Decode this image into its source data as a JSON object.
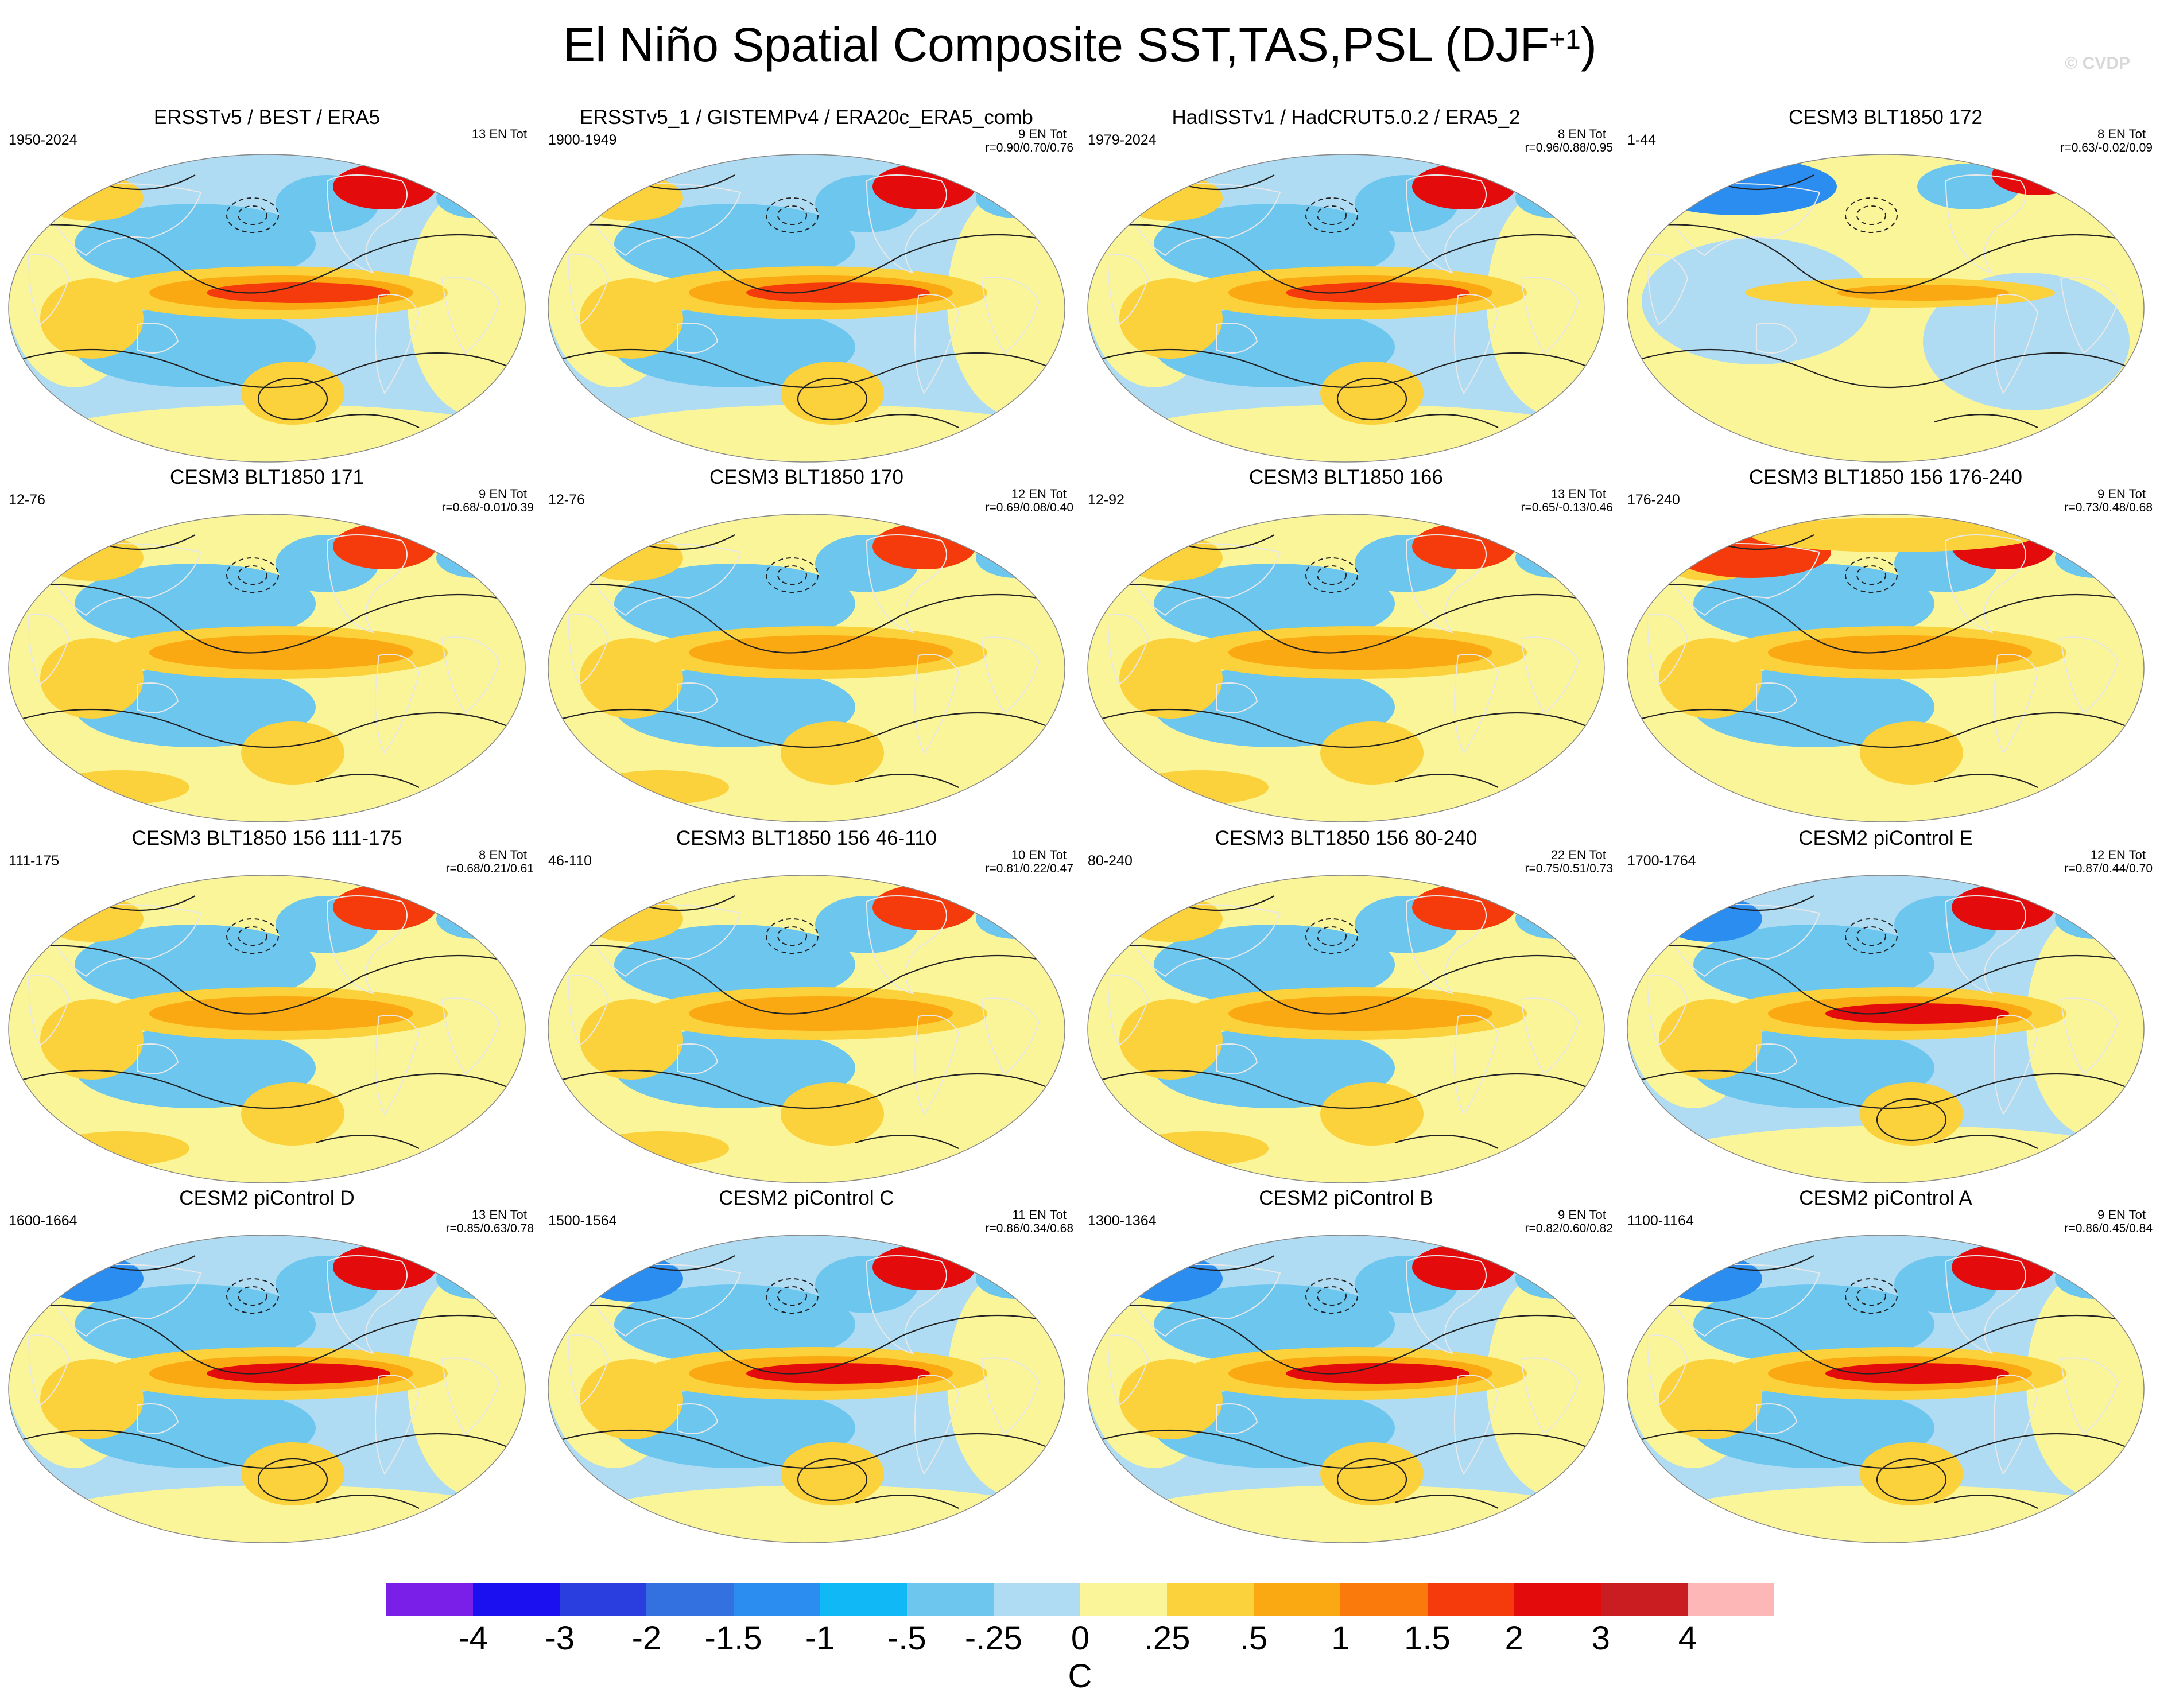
{
  "title": {
    "main": "El Niño Spatial Composite SST,TAS,PSL (DJF",
    "superscript": "+1",
    "close": ")"
  },
  "watermark": "© CVDP",
  "panels": [
    {
      "title": "ERSSTv5 / BEST / ERA5",
      "years": "1950-2024",
      "count": "13 EN Tot",
      "corr": "",
      "style": "obs"
    },
    {
      "title": "ERSSTv5_1 / GISTEMPv4 / ERA20c_ERA5_comb",
      "years": "1900-1949",
      "count": "9 EN Tot",
      "corr": "r=0.90/0.70/0.76",
      "style": "obs"
    },
    {
      "title": "HadISSTv1 / HadCRUT5.0.2 / ERA5_2",
      "years": "1979-2024",
      "count": "8 EN Tot",
      "corr": "r=0.96/0.88/0.95",
      "style": "obs"
    },
    {
      "title": "CESM3 BLT1850 172",
      "years": "1-44",
      "count": "8 EN Tot",
      "corr": "r=0.63/-0.02/0.09",
      "style": "weak"
    },
    {
      "title": "CESM3 BLT1850 171",
      "years": "12-76",
      "count": "9 EN Tot",
      "corr": "r=0.68/-0.01/0.39",
      "style": "model"
    },
    {
      "title": "CESM3 BLT1850 170",
      "years": "12-76",
      "count": "12 EN Tot",
      "corr": "r=0.69/0.08/0.40",
      "style": "model"
    },
    {
      "title": "CESM3 BLT1850 166",
      "years": "12-92",
      "count": "13 EN Tot",
      "corr": "r=0.65/-0.13/0.46",
      "style": "model"
    },
    {
      "title": "CESM3 BLT1850 156 176-240",
      "years": "176-240",
      "count": "9 EN Tot",
      "corr": "r=0.73/0.48/0.68",
      "style": "warm"
    },
    {
      "title": "CESM3 BLT1850 156 111-175",
      "years": "111-175",
      "count": "8 EN Tot",
      "corr": "r=0.68/0.21/0.61",
      "style": "model"
    },
    {
      "title": "CESM3 BLT1850 156 46-110",
      "years": "46-110",
      "count": "10 EN Tot",
      "corr": "r=0.81/0.22/0.47",
      "style": "model"
    },
    {
      "title": "CESM3 BLT1850 156 80-240",
      "years": "80-240",
      "count": "22 EN Tot",
      "corr": "r=0.75/0.51/0.73",
      "style": "model"
    },
    {
      "title": "CESM2 piControl E",
      "years": "1700-1764",
      "count": "12 EN Tot",
      "corr": "r=0.87/0.44/0.70",
      "style": "strong"
    },
    {
      "title": "CESM2 piControl D",
      "years": "1600-1664",
      "count": "13 EN Tot",
      "corr": "r=0.85/0.63/0.78",
      "style": "strong"
    },
    {
      "title": "CESM2 piControl C",
      "years": "1500-1564",
      "count": "11 EN Tot",
      "corr": "r=0.86/0.34/0.68",
      "style": "strong"
    },
    {
      "title": "CESM2 piControl B",
      "years": "1300-1364",
      "count": "9 EN Tot",
      "corr": "r=0.82/0.60/0.82",
      "style": "strong"
    },
    {
      "title": "CESM2 piControl A",
      "years": "1100-1164",
      "count": "9 EN Tot",
      "corr": "r=0.86/0.45/0.84",
      "style": "strong"
    }
  ],
  "colorbar": {
    "colors": [
      "#7a1fe8",
      "#1a10f0",
      "#2a3ee0",
      "#3370e0",
      "#2b8df0",
      "#10b8f5",
      "#6cc6ee",
      "#afdcf2",
      "#fbf59a",
      "#fbd13c",
      "#fba913",
      "#fb7a0c",
      "#f53a0c",
      "#e30b0b",
      "#c91d22",
      "#fdb7b7"
    ],
    "labels": [
      "-4",
      "-3",
      "-2",
      "-1.5",
      "-1",
      "-.5",
      "-.25",
      "0",
      ".25",
      ".5",
      "1",
      "1.5",
      "2",
      "3",
      "4"
    ],
    "unit": "C"
  }
}
